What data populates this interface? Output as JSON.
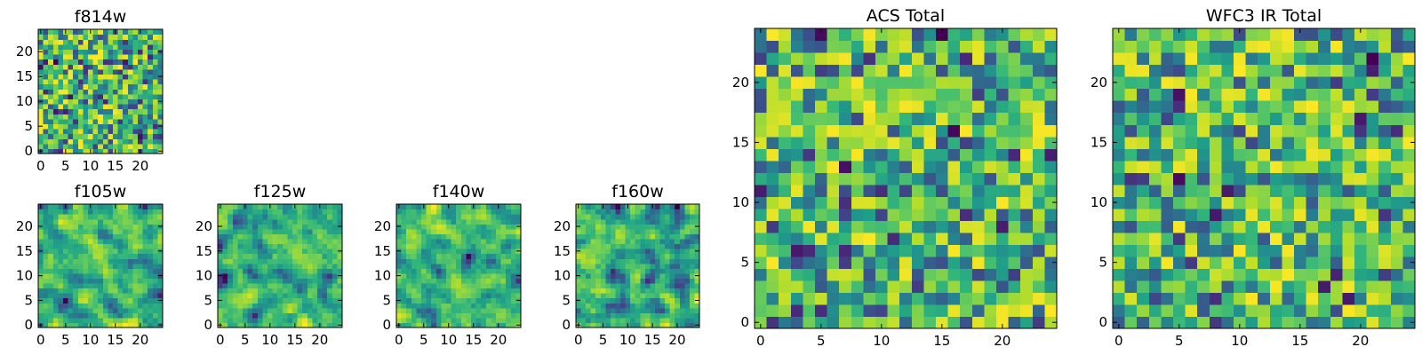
{
  "chart_data": [
    {
      "id": "f814w",
      "type": "heatmap",
      "title": "f814w",
      "colormap": "viridis",
      "grid_size": 25,
      "xlim": [
        0,
        24
      ],
      "ylim": [
        0,
        24
      ],
      "xticks": [
        0,
        5,
        10,
        15,
        20
      ],
      "yticks": [
        0,
        5,
        10,
        15,
        20
      ],
      "seed": 814,
      "smooth": 0
    },
    {
      "id": "f105w",
      "type": "heatmap",
      "title": "f105w",
      "colormap": "viridis",
      "grid_size": 25,
      "xlim": [
        0,
        24
      ],
      "ylim": [
        0,
        24
      ],
      "xticks": [
        0,
        5,
        10,
        15,
        20
      ],
      "yticks": [
        0,
        5,
        10,
        15,
        20
      ],
      "seed": 105,
      "smooth": 1
    },
    {
      "id": "f125w",
      "type": "heatmap",
      "title": "f125w",
      "colormap": "viridis",
      "grid_size": 25,
      "xlim": [
        0,
        24
      ],
      "ylim": [
        0,
        24
      ],
      "xticks": [
        0,
        5,
        10,
        15,
        20
      ],
      "yticks": [
        0,
        5,
        10,
        15,
        20
      ],
      "seed": 125,
      "smooth": 1
    },
    {
      "id": "f140w",
      "type": "heatmap",
      "title": "f140w",
      "colormap": "viridis",
      "grid_size": 25,
      "xlim": [
        0,
        24
      ],
      "ylim": [
        0,
        24
      ],
      "xticks": [
        0,
        5,
        10,
        15,
        20
      ],
      "yticks": [
        0,
        5,
        10,
        15,
        20
      ],
      "seed": 140,
      "smooth": 1
    },
    {
      "id": "f160w",
      "type": "heatmap",
      "title": "f160w",
      "colormap": "viridis",
      "grid_size": 25,
      "xlim": [
        0,
        24
      ],
      "ylim": [
        0,
        24
      ],
      "xticks": [
        0,
        5,
        10,
        15,
        20
      ],
      "yticks": [
        0,
        5,
        10,
        15,
        20
      ],
      "seed": 160,
      "smooth": 1
    },
    {
      "id": "acs_total",
      "type": "heatmap",
      "title": "ACS Total",
      "colormap": "viridis",
      "grid_size": 25,
      "xlim": [
        0,
        24
      ],
      "ylim": [
        0,
        24
      ],
      "xticks": [
        0,
        5,
        10,
        15,
        20
      ],
      "yticks": [
        0,
        5,
        10,
        15,
        20
      ],
      "seed": 777,
      "smooth": 0
    },
    {
      "id": "wfc3_ir_total",
      "type": "heatmap",
      "title": "WFC3 IR Total",
      "colormap": "viridis",
      "grid_size": 25,
      "xlim": [
        0,
        24
      ],
      "ylim": [
        0,
        24
      ],
      "xticks": [
        0,
        5,
        10,
        15,
        20
      ],
      "yticks": [
        0,
        5,
        10,
        15,
        20
      ],
      "seed": 333,
      "smooth": 0
    }
  ]
}
